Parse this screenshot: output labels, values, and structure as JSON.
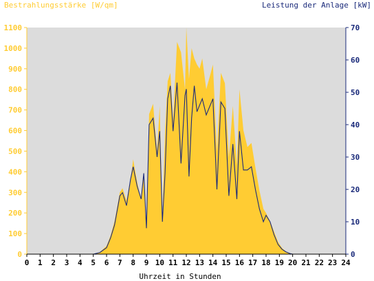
{
  "chart_data": {
    "type": "area",
    "title": "",
    "left_axis_title": "Bestrahlungsstärke [W/qm]",
    "right_axis_title": "Leistung der Anlage [kW]",
    "xlabel": "Uhrzeit in Stunden",
    "xlim": [
      0,
      24
    ],
    "ylim_left": [
      0,
      1100
    ],
    "ylim_right": [
      0,
      70
    ],
    "x_ticks": [
      "0",
      "1",
      "2",
      "3",
      "4",
      "5",
      "6",
      "7",
      "8",
      "9",
      "10",
      "11",
      "12",
      "13",
      "14",
      "15",
      "16",
      "17",
      "18",
      "19",
      "20",
      "21",
      "22",
      "23",
      "24"
    ],
    "y_left_ticks": [
      "0",
      "100",
      "200",
      "300",
      "400",
      "500",
      "600",
      "700",
      "800",
      "900",
      "1000",
      "1100"
    ],
    "y_right_ticks": [
      "0",
      "10",
      "20",
      "30",
      "40",
      "50",
      "60",
      "70"
    ],
    "grid": false,
    "colors": {
      "plot_background": "#dcdcdc",
      "irradiance_fill": "#ffcc33",
      "power_line": "#1a2a7a",
      "left_axis": "#ffcc33",
      "right_axis": "#1a2a7a",
      "bottom_axis": "#000000"
    },
    "series": [
      {
        "axis": "left",
        "style": "area",
        "x": [
          0,
          5,
          5.5,
          6,
          6.3,
          6.6,
          7,
          7.2,
          7.5,
          7.8,
          8,
          8.3,
          8.6,
          8.8,
          9,
          9.2,
          9.5,
          9.8,
          10,
          10.2,
          10.4,
          10.6,
          10.8,
          11,
          11.3,
          11.6,
          11.9,
          12,
          12.2,
          12.4,
          12.6,
          12.8,
          13,
          13.2,
          13.5,
          13.8,
          14,
          14.3,
          14.6,
          14.9,
          15.2,
          15.5,
          15.8,
          16,
          16.3,
          16.6,
          16.9,
          17.2,
          17.5,
          17.8,
          18,
          18.3,
          18.6,
          18.9,
          19.2,
          19.5,
          19.8,
          20,
          20.3,
          21,
          22,
          23,
          24
        ],
        "values": [
          0,
          0,
          10,
          40,
          90,
          160,
          300,
          320,
          260,
          360,
          460,
          350,
          260,
          400,
          120,
          680,
          730,
          500,
          720,
          180,
          600,
          840,
          880,
          650,
          1030,
          980,
          800,
          1100,
          850,
          1000,
          950,
          920,
          900,
          950,
          800,
          870,
          920,
          500,
          880,
          830,
          470,
          720,
          430,
          800,
          600,
          520,
          540,
          420,
          310,
          220,
          200,
          160,
          110,
          60,
          30,
          12,
          4,
          0,
          0,
          0,
          0,
          0,
          0
        ]
      },
      {
        "axis": "right",
        "style": "line",
        "x": [
          0,
          5,
          5.5,
          6,
          6.3,
          6.6,
          7,
          7.2,
          7.5,
          7.8,
          8,
          8.3,
          8.6,
          8.8,
          9,
          9.2,
          9.5,
          9.8,
          10,
          10.2,
          10.4,
          10.6,
          10.8,
          11,
          11.3,
          11.6,
          11.9,
          12,
          12.2,
          12.4,
          12.6,
          12.8,
          13,
          13.2,
          13.5,
          13.8,
          14,
          14.3,
          14.6,
          14.9,
          15.2,
          15.5,
          15.8,
          16,
          16.3,
          16.6,
          16.9,
          17.2,
          17.5,
          17.8,
          18,
          18.3,
          18.6,
          18.9,
          19.2,
          19.5,
          19.8,
          20,
          20.3,
          21,
          22,
          23,
          24
        ],
        "values": [
          0,
          0,
          0.5,
          2,
          5,
          9,
          18,
          19,
          15,
          23,
          27,
          21,
          17,
          25,
          8,
          40,
          42,
          30,
          38,
          10,
          25,
          48,
          52,
          38,
          53,
          28,
          49,
          51,
          24,
          42,
          52,
          44,
          46,
          48,
          43,
          46,
          48,
          20,
          47,
          45,
          18,
          34,
          17,
          38,
          26,
          26,
          27,
          20,
          14,
          10,
          12,
          10,
          6,
          3,
          1.5,
          0.7,
          0.2,
          0,
          0,
          0,
          0,
          0,
          0
        ]
      }
    ]
  }
}
